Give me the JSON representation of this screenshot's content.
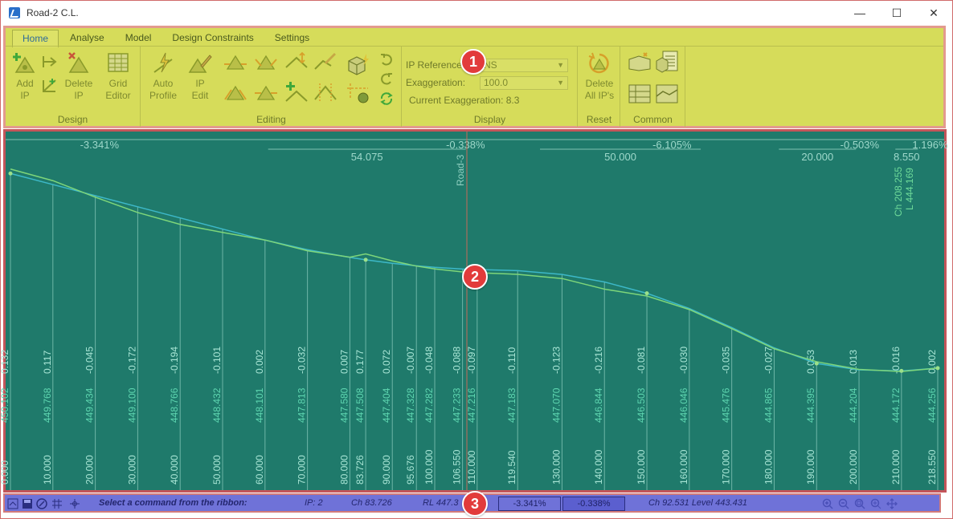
{
  "window": {
    "title": "Road-2 C.L.",
    "minimize": "—",
    "maximize": "☐",
    "close": "✕"
  },
  "ribbon": {
    "tabs": [
      "Home",
      "Analyse",
      "Model",
      "Design Constraints",
      "Settings"
    ],
    "groups": {
      "design": "Design",
      "editing": "Editing",
      "display": "Display",
      "reset": "Reset",
      "common": "Common"
    },
    "buttons": {
      "add_ip": "Add\nIP",
      "delete_ip": "Delete\nIP",
      "grid_editor": "Grid\nEditor",
      "auto_profile": "Auto\nProfile",
      "ip_edit": "IP\nEdit",
      "delete_all_ips": "Delete\nAll IP's"
    },
    "display": {
      "ip_reference_label": "IP Reference:",
      "ip_reference_value": "NS",
      "exaggeration_label": "Exaggeration:",
      "exaggeration_value": "100.0",
      "current_exaggeration": "Current Exaggeration: 8.3"
    }
  },
  "profile": {
    "grades": [
      "-3.341%",
      "-0.338%",
      "-6.105%",
      "-0.503%",
      "1.196%"
    ],
    "vc_lengths": [
      "54.075",
      "50.000",
      "20.000",
      "8.550"
    ],
    "road_label": "Road-3",
    "cursor_label_ch": "Ch 208.255",
    "cursor_label_l": "L 444.169",
    "columns": [
      {
        "ch": "0.000",
        "level": "450.102",
        "diff": "0.132"
      },
      {
        "ch": "10.000",
        "level": "449.768",
        "diff": "0.117"
      },
      {
        "ch": "20.000",
        "level": "449.434",
        "diff": "-0.045"
      },
      {
        "ch": "30.000",
        "level": "449.100",
        "diff": "-0.172"
      },
      {
        "ch": "40.000",
        "level": "448.766",
        "diff": "-0.194"
      },
      {
        "ch": "50.000",
        "level": "448.432",
        "diff": "-0.101"
      },
      {
        "ch": "60.000",
        "level": "448.101",
        "diff": "0.002"
      },
      {
        "ch": "70.000",
        "level": "447.813",
        "diff": "-0.032"
      },
      {
        "ch": "80.000",
        "level": "447.580",
        "diff": "0.007"
      },
      {
        "ch": "83.726",
        "level": "447.508",
        "diff": "0.177"
      },
      {
        "ch": "90.000",
        "level": "447.404",
        "diff": "0.072"
      },
      {
        "ch": "95.676",
        "level": "447.328",
        "diff": "-0.007"
      },
      {
        "ch": "100.000",
        "level": "447.282",
        "diff": "-0.048"
      },
      {
        "ch": "106.550",
        "level": "447.233",
        "diff": "-0.088"
      },
      {
        "ch": "110.000",
        "level": "447.216",
        "diff": "-0.097"
      },
      {
        "ch": "119.540",
        "level": "447.183",
        "diff": "-0.110"
      },
      {
        "ch": "130.000",
        "level": "447.070",
        "diff": "-0.123"
      },
      {
        "ch": "140.000",
        "level": "446.844",
        "diff": "-0.216"
      },
      {
        "ch": "150.000",
        "level": "446.503",
        "diff": "-0.081"
      },
      {
        "ch": "160.000",
        "level": "446.046",
        "diff": "-0.030"
      },
      {
        "ch": "170.000",
        "level": "445.476",
        "diff": "-0.035"
      },
      {
        "ch": "180.000",
        "level": "444.865",
        "diff": "-0.027"
      },
      {
        "ch": "190.000",
        "level": "444.395",
        "diff": "0.053"
      },
      {
        "ch": "200.000",
        "level": "444.204",
        "diff": "0.013"
      },
      {
        "ch": "210.000",
        "level": "444.172",
        "diff": "-0.016"
      },
      {
        "ch": "218.550",
        "level": "444.256",
        "diff": "0.002"
      }
    ]
  },
  "status": {
    "message": "Select a command from the ribbon:",
    "ip": "IP: 2",
    "ch": "Ch 83.726",
    "rl": "RL 447.3",
    "grade_in": "-3.341%",
    "grade_out": "-0.338%",
    "cursor": "Ch 92.531 Level 443.431"
  },
  "callouts": [
    "1",
    "2",
    "3"
  ],
  "colors": {
    "ribbon": "#d6dc5a",
    "view_bg": "#1f7a6b",
    "status_bg": "#6f72d8",
    "callout": "#e23b3b"
  }
}
